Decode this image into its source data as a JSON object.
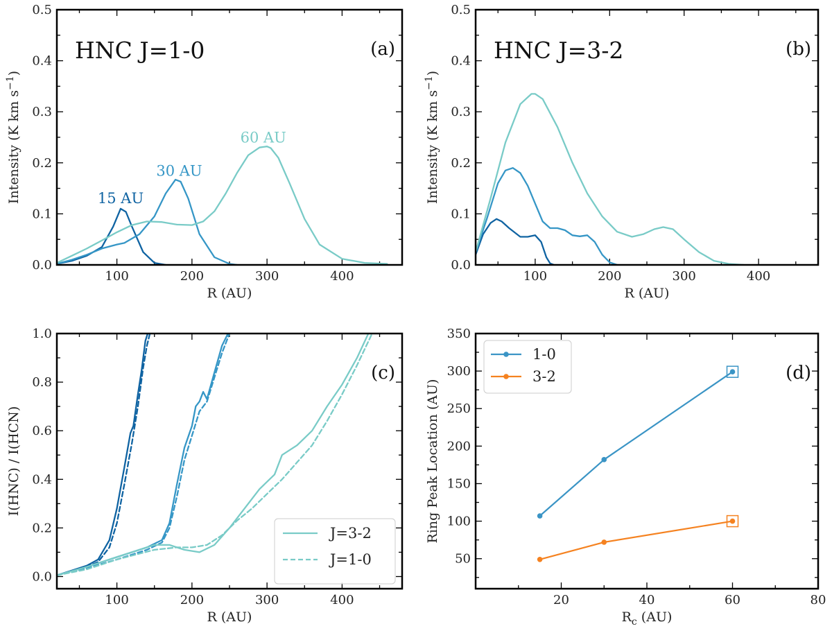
{
  "colors": {
    "c15": "#0f63a2",
    "c30": "#3596c6",
    "c60": "#79cbc7",
    "line10": "#3a94c5",
    "line32": "#f58220"
  },
  "chart_data": [
    {
      "id": "a",
      "type": "line",
      "panel_label": "(a)",
      "title": "HNC J=1-0",
      "xlabel": "R (AU)",
      "ylabel": "Intensity (K km s",
      "ylabel_sup": "−1",
      "ylabel_end": ")",
      "xlim": [
        20,
        480
      ],
      "ylim": [
        0,
        0.5
      ],
      "xticks": [
        100,
        200,
        300,
        400
      ],
      "yticks": [
        0.0,
        0.1,
        0.2,
        0.3,
        0.4,
        0.5
      ],
      "ytick_labels": [
        "0.0",
        "0.1",
        "0.2",
        "0.3",
        "0.4",
        "0.5"
      ],
      "series": [
        {
          "name": "15 AU",
          "color": "c15",
          "dash": "solid",
          "x": [
            20,
            40,
            60,
            80,
            95,
            105,
            112,
            120,
            135,
            150,
            165
          ],
          "y": [
            0.002,
            0.008,
            0.018,
            0.035,
            0.075,
            0.11,
            0.104,
            0.075,
            0.025,
            0.004,
            0.0
          ]
        },
        {
          "name": "30 AU",
          "color": "c30",
          "dash": "solid",
          "x": [
            20,
            40,
            60,
            80,
            100,
            110,
            130,
            150,
            165,
            178,
            185,
            195,
            210,
            230,
            250,
            260
          ],
          "y": [
            0.002,
            0.01,
            0.02,
            0.032,
            0.04,
            0.043,
            0.06,
            0.095,
            0.14,
            0.167,
            0.163,
            0.13,
            0.06,
            0.015,
            0.002,
            0.0
          ]
        },
        {
          "name": "60 AU",
          "color": "c60",
          "dash": "solid",
          "x": [
            20,
            40,
            60,
            80,
            100,
            120,
            140,
            160,
            180,
            200,
            215,
            230,
            245,
            260,
            275,
            290,
            300,
            305,
            315,
            330,
            350,
            370,
            400,
            430,
            460
          ],
          "y": [
            0.004,
            0.018,
            0.032,
            0.048,
            0.064,
            0.078,
            0.085,
            0.084,
            0.079,
            0.078,
            0.085,
            0.105,
            0.14,
            0.18,
            0.215,
            0.23,
            0.232,
            0.229,
            0.21,
            0.16,
            0.09,
            0.04,
            0.012,
            0.004,
            0.002
          ]
        }
      ],
      "annotations": [
        {
          "text": "15 AU",
          "x": 105,
          "y": 0.118,
          "color": "c15"
        },
        {
          "text": "30 AU",
          "x": 183,
          "y": 0.172,
          "color": "c30"
        },
        {
          "text": "60 AU",
          "x": 295,
          "y": 0.237,
          "color": "c60"
        }
      ]
    },
    {
      "id": "b",
      "type": "line",
      "panel_label": "(b)",
      "title": "HNC J=3-2",
      "xlabel": "R (AU)",
      "ylabel": "Intensity (K km s",
      "ylabel_sup": "−1",
      "ylabel_end": ")",
      "xlim": [
        20,
        480
      ],
      "ylim": [
        0,
        0.5
      ],
      "xticks": [
        100,
        200,
        300,
        400
      ],
      "yticks": [
        0.0,
        0.1,
        0.2,
        0.3,
        0.4,
        0.5
      ],
      "ytick_labels": [
        "0.0",
        "0.1",
        "0.2",
        "0.3",
        "0.4",
        "0.5"
      ],
      "series": [
        {
          "name": "15 AU",
          "color": "c15",
          "dash": "solid",
          "x": [
            20,
            30,
            40,
            48,
            55,
            65,
            80,
            90,
            100,
            108,
            115,
            120,
            125
          ],
          "y": [
            0.02,
            0.06,
            0.082,
            0.09,
            0.085,
            0.072,
            0.055,
            0.055,
            0.058,
            0.045,
            0.015,
            0.003,
            0.0
          ]
        },
        {
          "name": "30 AU",
          "color": "c30",
          "dash": "solid",
          "x": [
            20,
            35,
            50,
            60,
            70,
            80,
            90,
            100,
            110,
            120,
            130,
            140,
            150,
            160,
            170,
            180,
            190,
            200,
            210
          ],
          "y": [
            0.025,
            0.09,
            0.16,
            0.185,
            0.19,
            0.18,
            0.155,
            0.12,
            0.085,
            0.072,
            0.072,
            0.068,
            0.058,
            0.056,
            0.058,
            0.045,
            0.02,
            0.005,
            0.0
          ]
        },
        {
          "name": "60 AU",
          "color": "c60",
          "dash": "solid",
          "x": [
            20,
            40,
            60,
            80,
            95,
            100,
            110,
            130,
            150,
            170,
            190,
            210,
            230,
            245,
            260,
            272,
            285,
            300,
            320,
            340,
            360,
            380
          ],
          "y": [
            0.025,
            0.13,
            0.24,
            0.315,
            0.335,
            0.335,
            0.325,
            0.27,
            0.2,
            0.14,
            0.095,
            0.065,
            0.055,
            0.06,
            0.07,
            0.074,
            0.07,
            0.05,
            0.025,
            0.008,
            0.002,
            0.0
          ]
        }
      ]
    },
    {
      "id": "c",
      "type": "line",
      "panel_label": "(c)",
      "title": "",
      "xlabel": "R (AU)",
      "ylabel": "I(HNC) / I(HCN)",
      "xlim": [
        20,
        480
      ],
      "ylim": [
        -0.05,
        1.0
      ],
      "xticks": [
        100,
        200,
        300,
        400
      ],
      "yticks": [
        0.0,
        0.2,
        0.4,
        0.6,
        0.8,
        1.0
      ],
      "ytick_labels": [
        "0.0",
        "0.2",
        "0.4",
        "0.6",
        "0.8",
        "1.0"
      ],
      "legend": [
        {
          "label": "J=3-2",
          "dash": "solid"
        },
        {
          "label": "J=1-0",
          "dash": "dashed"
        }
      ],
      "series": [
        {
          "name": "15 AU J=3-2",
          "color": "c15",
          "dash": "solid",
          "x": [
            20,
            40,
            60,
            75,
            90,
            100,
            110,
            118,
            122,
            128,
            133,
            138,
            141
          ],
          "y": [
            0.005,
            0.025,
            0.045,
            0.07,
            0.15,
            0.28,
            0.45,
            0.59,
            0.62,
            0.75,
            0.85,
            0.97,
            1.0
          ]
        },
        {
          "name": "15 AU J=1-0",
          "color": "c15",
          "dash": "dashed",
          "x": [
            20,
            40,
            60,
            75,
            90,
            100,
            110,
            120,
            128,
            135,
            140,
            144
          ],
          "y": [
            0.005,
            0.02,
            0.04,
            0.06,
            0.12,
            0.22,
            0.38,
            0.55,
            0.7,
            0.86,
            0.95,
            1.0
          ]
        },
        {
          "name": "30 AU J=3-2",
          "color": "c30",
          "dash": "solid",
          "x": [
            20,
            60,
            100,
            140,
            160,
            170,
            180,
            190,
            200,
            205,
            210,
            215,
            220,
            230,
            240,
            248
          ],
          "y": [
            0.005,
            0.04,
            0.08,
            0.12,
            0.15,
            0.22,
            0.38,
            0.53,
            0.62,
            0.7,
            0.72,
            0.76,
            0.73,
            0.84,
            0.95,
            1.0
          ]
        },
        {
          "name": "30 AU J=1-0",
          "color": "c30",
          "dash": "dashed",
          "x": [
            20,
            60,
            100,
            140,
            160,
            170,
            180,
            190,
            200,
            210,
            220,
            230,
            240,
            250
          ],
          "y": [
            0.005,
            0.035,
            0.07,
            0.11,
            0.14,
            0.2,
            0.33,
            0.48,
            0.58,
            0.68,
            0.72,
            0.82,
            0.92,
            1.0
          ]
        },
        {
          "name": "60 AU J=3-2",
          "color": "c60",
          "dash": "solid",
          "x": [
            20,
            60,
            100,
            130,
            150,
            170,
            190,
            210,
            230,
            250,
            270,
            290,
            310,
            320,
            330,
            340,
            350,
            360,
            380,
            400,
            420,
            435
          ],
          "y": [
            0.005,
            0.04,
            0.08,
            0.11,
            0.13,
            0.13,
            0.11,
            0.1,
            0.13,
            0.2,
            0.28,
            0.36,
            0.42,
            0.5,
            0.52,
            0.54,
            0.57,
            0.6,
            0.7,
            0.79,
            0.9,
            1.0
          ]
        },
        {
          "name": "60 AU J=1-0",
          "color": "c60",
          "dash": "dashed",
          "x": [
            20,
            60,
            100,
            150,
            180,
            200,
            220,
            240,
            260,
            280,
            300,
            320,
            340,
            360,
            380,
            400,
            420,
            440
          ],
          "y": [
            0.005,
            0.03,
            0.07,
            0.11,
            0.12,
            0.12,
            0.13,
            0.17,
            0.23,
            0.28,
            0.34,
            0.4,
            0.47,
            0.54,
            0.64,
            0.75,
            0.87,
            1.0
          ]
        }
      ]
    },
    {
      "id": "d",
      "type": "line",
      "panel_label": "(d)",
      "title": "",
      "xlabel": "R",
      "xlabel_sub": "c",
      "xlabel_end": " (AU)",
      "ylabel": "Ring Peak Location (AU)",
      "xlim": [
        0,
        80
      ],
      "ylim": [
        10,
        350
      ],
      "xticks": [
        20,
        40,
        60,
        80
      ],
      "yticks": [
        50,
        100,
        150,
        200,
        250,
        300,
        350
      ],
      "ytick_labels": [
        "50",
        "100",
        "150",
        "200",
        "250",
        "300",
        "350"
      ],
      "series": [
        {
          "name": "1-0",
          "color": "line10",
          "x": [
            15,
            30,
            60
          ],
          "y": [
            107,
            182,
            299
          ],
          "boxed_last": true
        },
        {
          "name": "3-2",
          "color": "line32",
          "x": [
            15,
            30,
            60
          ],
          "y": [
            49,
            72,
            100
          ],
          "boxed_last": true
        }
      ]
    }
  ]
}
